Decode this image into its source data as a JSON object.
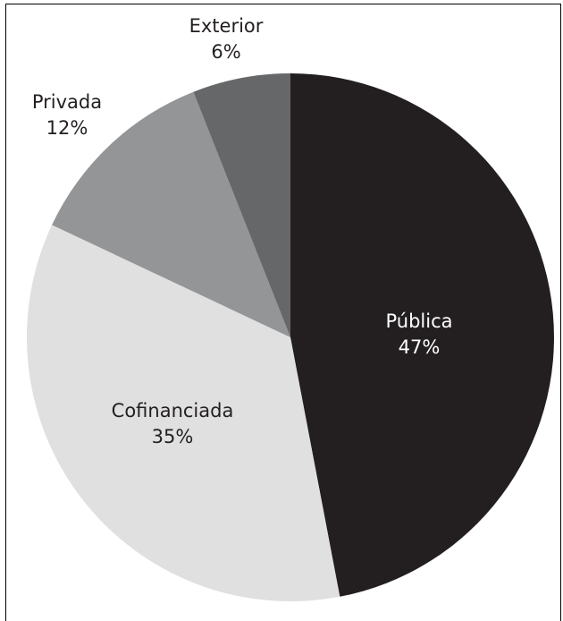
{
  "chart_data": {
    "type": "pie",
    "title": "",
    "slices": [
      {
        "label": "Pública",
        "value": 47,
        "value_label": "47%",
        "color": "#231f20",
        "text_color": "#ffffff"
      },
      {
        "label": "Cofinanciada",
        "value": 35,
        "value_label": "35%",
        "color": "#e0e0e1",
        "text_color": "#231f20"
      },
      {
        "label": "Privada",
        "value": 12,
        "value_label": "12%",
        "color": "#939597",
        "text_color": "#231f20"
      },
      {
        "label": "Exterior",
        "value": 6,
        "value_label": "6%",
        "color": "#666769",
        "text_color": "#231f20"
      }
    ],
    "start_angle": "12 o'clock",
    "direction": "clockwise",
    "legend": "none",
    "label_placement": "inside for large slices, outside for small slices"
  }
}
